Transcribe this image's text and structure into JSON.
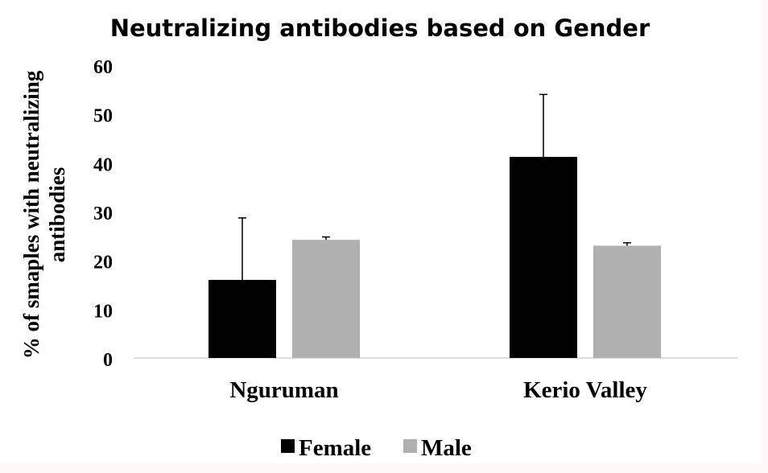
{
  "chart_data": {
    "type": "bar",
    "title": "Neutralizing antibodies based on Gender",
    "ylabel_lines": [
      "% of smaples with neutralizing",
      "antibodies"
    ],
    "xlabel": "",
    "categories": [
      "Nguruman",
      "Kerio Valley"
    ],
    "ylim": [
      0,
      60
    ],
    "yticks": [
      0,
      10,
      20,
      30,
      40,
      50,
      60
    ],
    "series": [
      {
        "name": "Female",
        "color": "#000000",
        "values": [
          16,
          41.2
        ],
        "error": [
          12.7,
          12.8
        ]
      },
      {
        "name": "Male",
        "color": "#b0b0b0",
        "values": [
          24.2,
          23
        ],
        "error": [
          0.6,
          0.6
        ]
      }
    ],
    "grid": false,
    "legend": "bottom"
  }
}
